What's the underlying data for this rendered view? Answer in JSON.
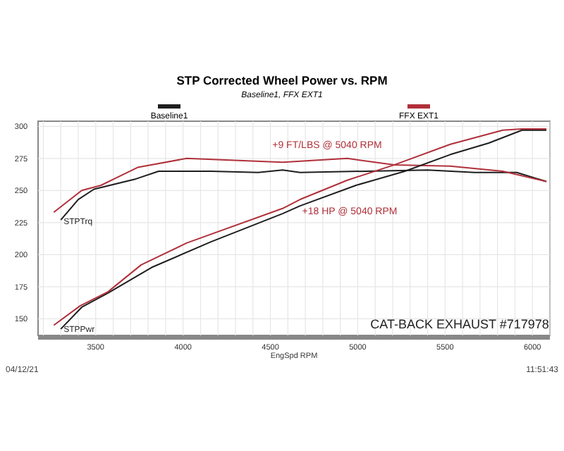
{
  "chart_data": {
    "type": "line",
    "title": "STP Corrected Wheel Power vs. RPM",
    "subtitle": "Baseline1, FFX EXT1",
    "xlabel": "EngSpd RPM",
    "xlim": [
      3170,
      6100
    ],
    "xticks": [
      3500,
      4000,
      4500,
      5000,
      5500,
      6000
    ],
    "ylim": [
      137,
      304
    ],
    "yticks": [
      150,
      175,
      200,
      225,
      250,
      275,
      300
    ],
    "grid": true,
    "legend": "top",
    "line_style": "solid",
    "series": [
      {
        "name": "Baseline1",
        "color": "#1e1e1e",
        "x": [
          3300,
          3400,
          3490,
          3730,
          3860,
          4160,
          4430,
          4570,
          4670,
          5400,
          5670,
          5910,
          6080
        ],
        "values": [
          227,
          243,
          251,
          259,
          265,
          265,
          264,
          266,
          264,
          266,
          264,
          264,
          257
        ]
      },
      {
        "name": "FFX EXT1",
        "color": "#b0303a",
        "x": [
          3260,
          3420,
          3530,
          3740,
          4020,
          4570,
          4940,
          5210,
          5530,
          5830,
          6080
        ],
        "values": [
          233,
          250,
          254,
          268,
          275,
          272,
          275,
          270,
          269,
          265,
          257
        ]
      },
      {
        "color": "#1e1e1e",
        "x": [
          3300,
          3420,
          3570,
          3820,
          4160,
          4570,
          4670,
          4990,
          5270,
          5530,
          5750,
          5940,
          6080
        ],
        "values": [
          142,
          159,
          170,
          190,
          210,
          232,
          238,
          254,
          265,
          278,
          287,
          297,
          297
        ]
      },
      {
        "color": "#b0303a",
        "x": [
          3260,
          3410,
          3570,
          3760,
          4020,
          4570,
          4670,
          4940,
          5210,
          5530,
          5830,
          5940,
          6080
        ],
        "values": [
          145,
          160,
          171,
          192,
          209,
          236,
          243,
          258,
          270,
          286,
          297,
          298,
          298
        ]
      }
    ],
    "annotations": [
      {
        "text": "STPTrq",
        "x": 3300,
        "y": 226
      },
      {
        "text": "STPPwr",
        "x": 3300,
        "y": 142
      },
      "+9 FT/LBS @ 5040 RPM",
      "+18 HP @ 5040 RPM",
      "CAT-BACK EXHAUST #717978",
      "04/12/21",
      "11:51:43"
    ]
  }
}
